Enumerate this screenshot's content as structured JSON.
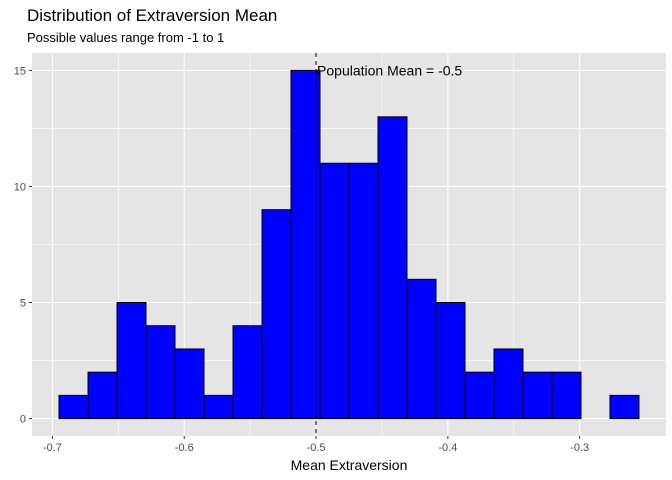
{
  "chart_data": {
    "type": "bar",
    "title": "Distribution of Extraversion Mean",
    "subtitle": "Possible values range from -1 to 1",
    "xlabel": "Mean Extraversion",
    "ylabel": "",
    "bin_edges": [
      -0.695,
      -0.673,
      -0.651,
      -0.629,
      -0.607,
      -0.585,
      -0.563,
      -0.541,
      -0.519,
      -0.497,
      -0.475,
      -0.453,
      -0.431,
      -0.409,
      -0.387,
      -0.365,
      -0.343,
      -0.321,
      -0.299,
      -0.277,
      -0.255
    ],
    "counts": [
      1,
      2,
      5,
      4,
      3,
      1,
      4,
      9,
      15,
      11,
      11,
      13,
      6,
      5,
      2,
      3,
      2,
      2,
      0,
      1
    ],
    "xlim": [
      -0.7155,
      -0.2345
    ],
    "ylim": [
      -0.75,
      15.75
    ],
    "x_ticks": [
      -0.7,
      -0.6,
      -0.5,
      -0.4,
      -0.3
    ],
    "x_tick_labels": [
      "-0.7",
      "-0.6",
      "-0.5",
      "-0.4",
      "-0.3"
    ],
    "y_ticks": [
      0,
      5,
      10,
      15
    ],
    "y_tick_labels": [
      "0",
      "5",
      "10",
      "15"
    ],
    "bar_fill": "#0000ff",
    "bar_outline": "#000000",
    "panel_background": "#e5e5e5",
    "grid": true,
    "vline": {
      "x": -0.5,
      "style": "dashed",
      "color": "#000000"
    },
    "annotation": {
      "text": "Population Mean = -0.5",
      "x": -0.5,
      "y": 15
    }
  }
}
